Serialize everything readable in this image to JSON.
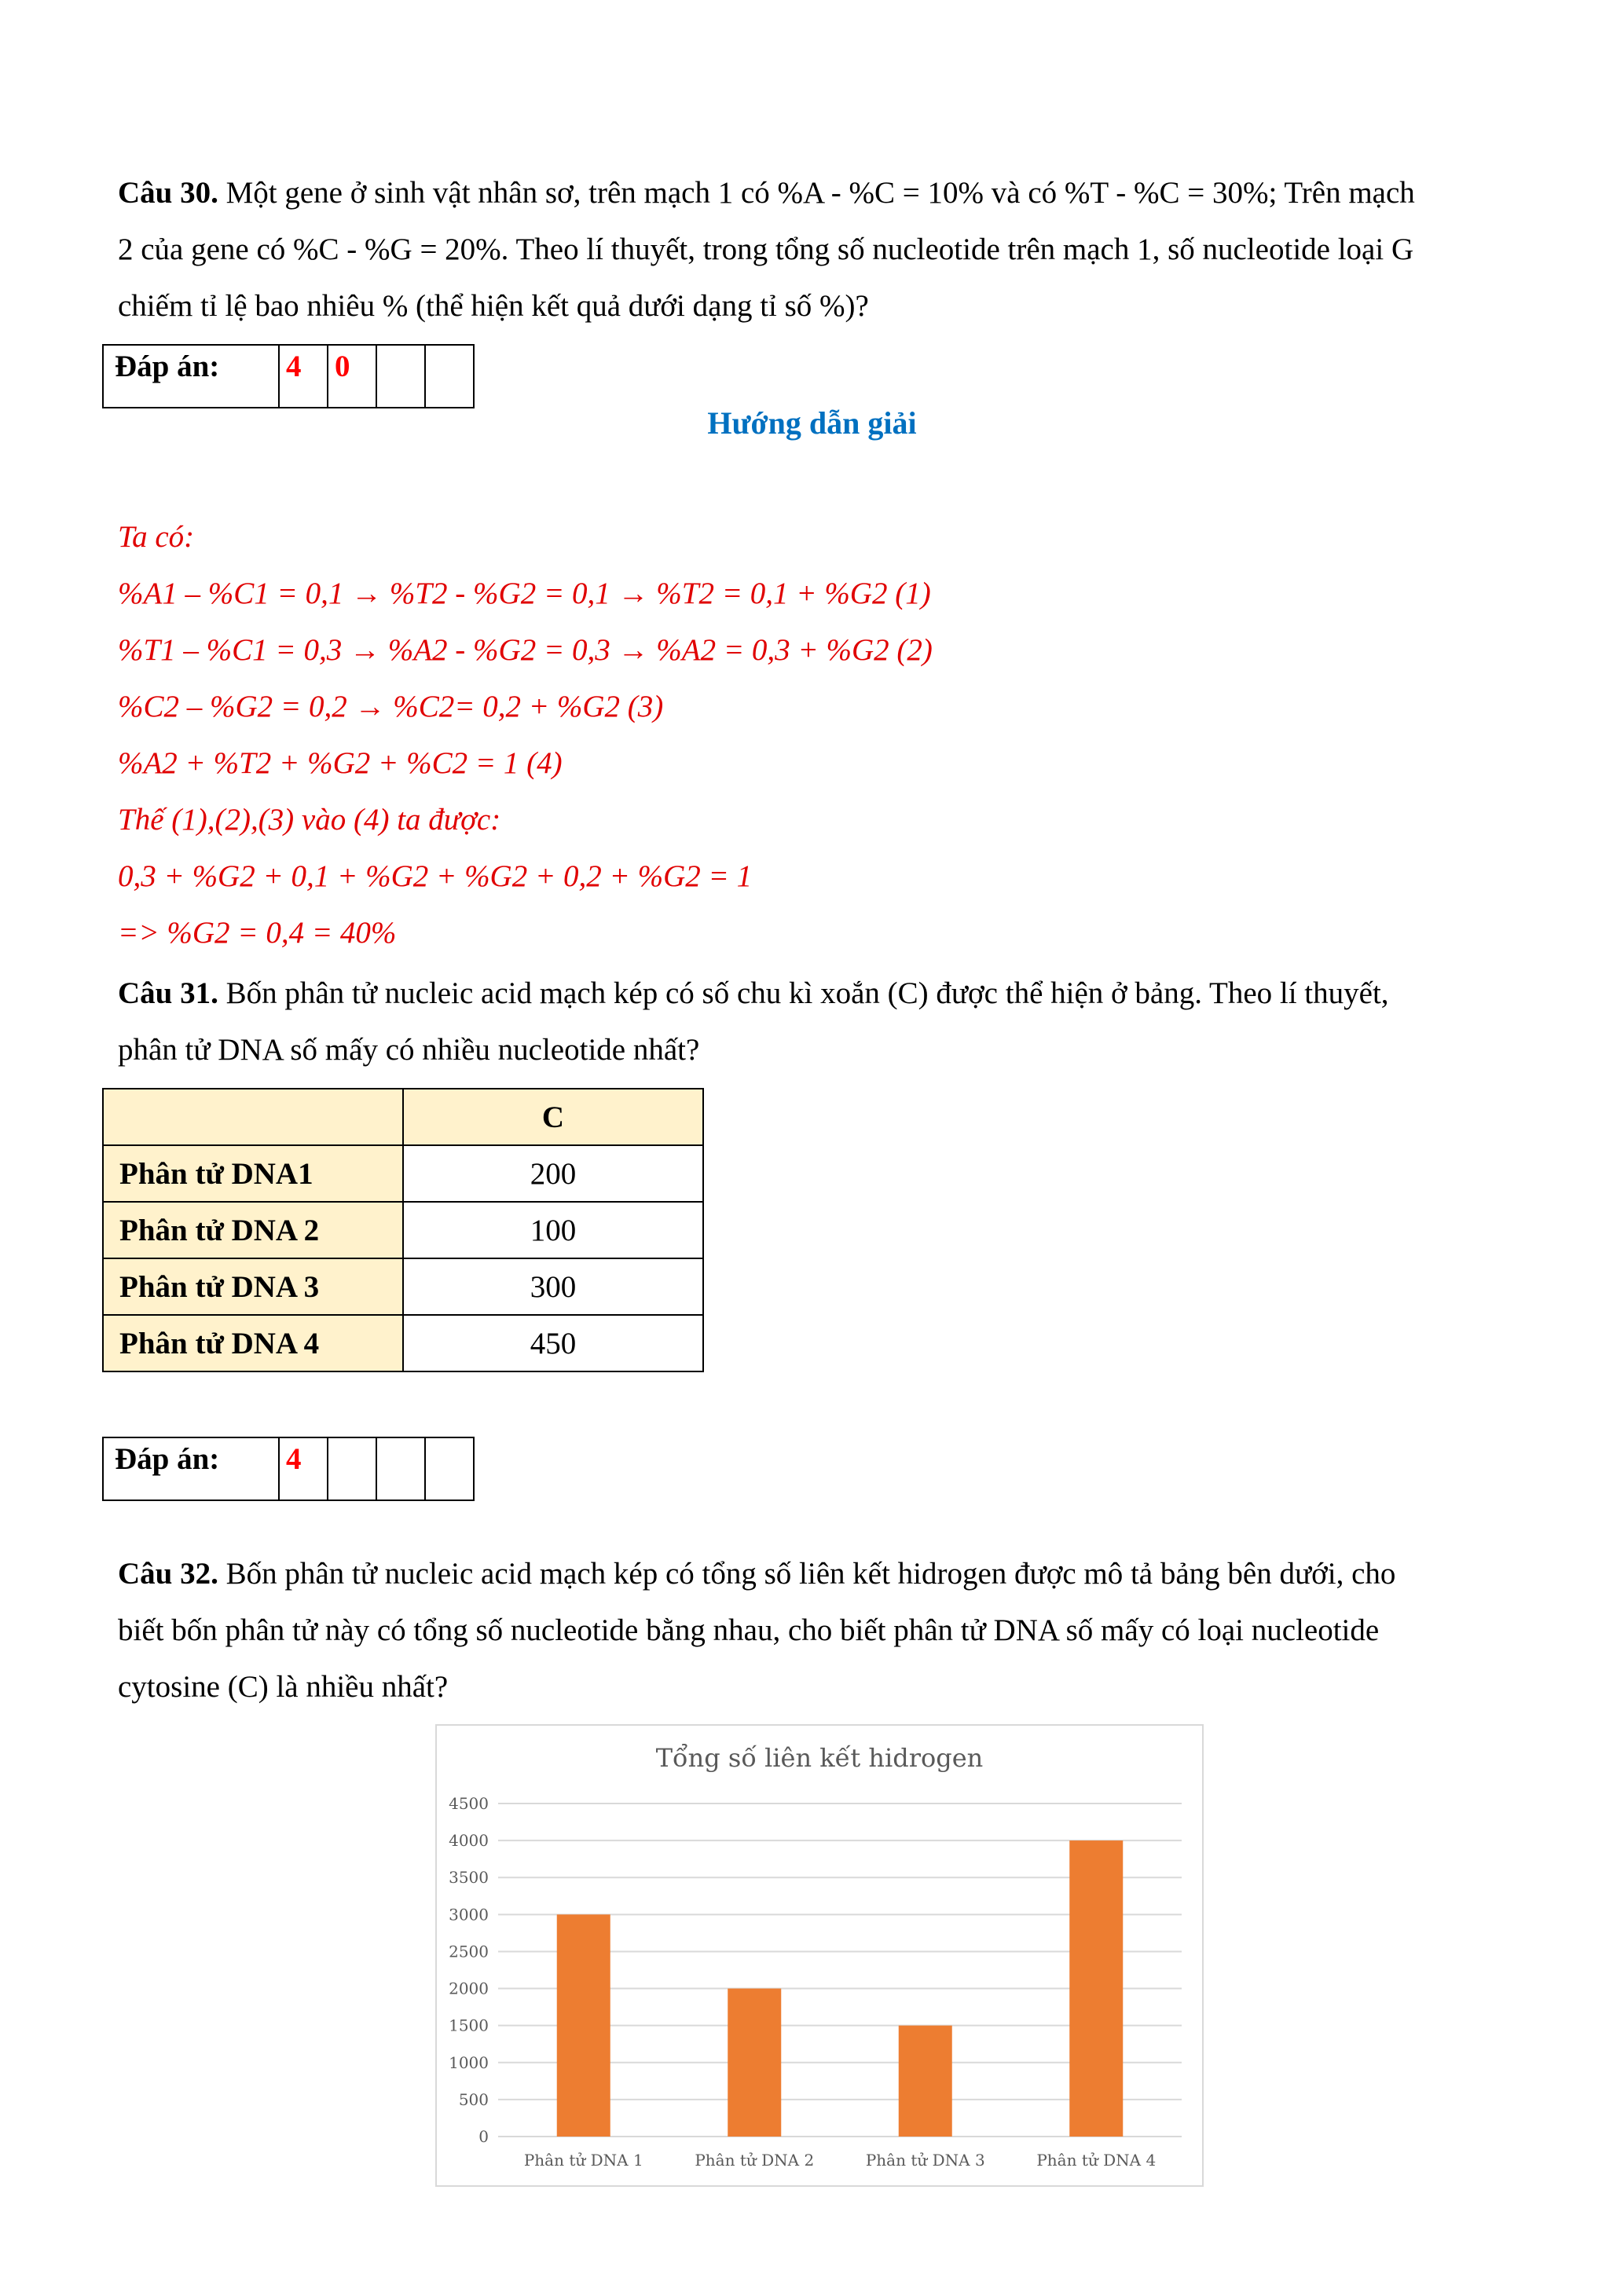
{
  "q30": {
    "label": "Câu 30.",
    "lines": [
      "Một gene ở sinh vật nhân sơ, trên mạch 1 có %A - %C = 10% và có %T - %C = 30%; Trên mạch",
      "2 của gene có %C - %G = 20%. Theo lí thuyết, trong tổng số nucleotide trên mạch 1, số nucleotide loại G",
      "chiếm tỉ lệ bao nhiêu % (thể hiện kết quả dưới dạng tỉ số %)?"
    ],
    "answer_label": "Đáp án:",
    "answer_cells": [
      "4",
      "0",
      "",
      ""
    ]
  },
  "guide_title": "Hướng dẫn giải",
  "solution": [
    "Ta có:",
    "%A1 – %C1 = 0,1 → %T2 - %G2 = 0,1 → %T2 = 0,1 + %G2 (1)",
    "%T1 – %C1 = 0,3 → %A2 - %G2 = 0,3 → %A2 = 0,3 + %G2 (2)",
    "%C2 – %G2 = 0,2 → %C2= 0,2 + %G2 (3)",
    "%A2 + %T2 + %G2 + %C2 = 1 (4)",
    "Thế (1),(2),(3) vào (4) ta được:",
    "0,3 + %G2 + 0,1 + %G2 + %G2 + 0,2 + %G2 = 1",
    "=> %G2 = 0,4 = 40%"
  ],
  "q31": {
    "label": "Câu 31.",
    "lines": [
      "Bốn phân tử nucleic acid mạch kép có số chu kì xoắn (C) được thể hiện ở bảng. Theo lí thuyết,",
      "phân tử DNA số mấy có nhiều nucleotide nhất?"
    ],
    "table": {
      "header": [
        "",
        "C"
      ],
      "rows": [
        [
          "Phân tử DNA1",
          "200"
        ],
        [
          "Phân tử DNA 2",
          "100"
        ],
        [
          "Phân tử DNA 3",
          "300"
        ],
        [
          "Phân tử DNA 4",
          "450"
        ]
      ]
    },
    "answer_label": "Đáp án:",
    "answer_cells": [
      "4",
      "",
      "",
      ""
    ]
  },
  "q32": {
    "label": "Câu 32.",
    "lines": [
      "Bốn phân tử nucleic acid mạch kép có tổng số liên kết hidrogen được mô tả bảng bên dưới, cho",
      "biết bốn phân tử này có tổng số nucleotide bằng nhau, cho biết phân tử DNA số mấy có loại nucleotide",
      "cytosine (C) là nhiều nhất?"
    ]
  },
  "chart_data": {
    "type": "bar",
    "title": "Tổng số liên kết hidrogen",
    "categories": [
      "Phân tử DNA 1",
      "Phân tử DNA 2",
      "Phân tử DNA 3",
      "Phân tử DNA 4"
    ],
    "values": [
      3000,
      2000,
      1500,
      4000
    ],
    "ylim": [
      0,
      4500
    ],
    "yticks": [
      "0",
      "500",
      "1000",
      "1500",
      "2000",
      "2500",
      "3000",
      "3500",
      "4000",
      "4500"
    ],
    "grid": true,
    "bar_color": "#ed7d31"
  }
}
